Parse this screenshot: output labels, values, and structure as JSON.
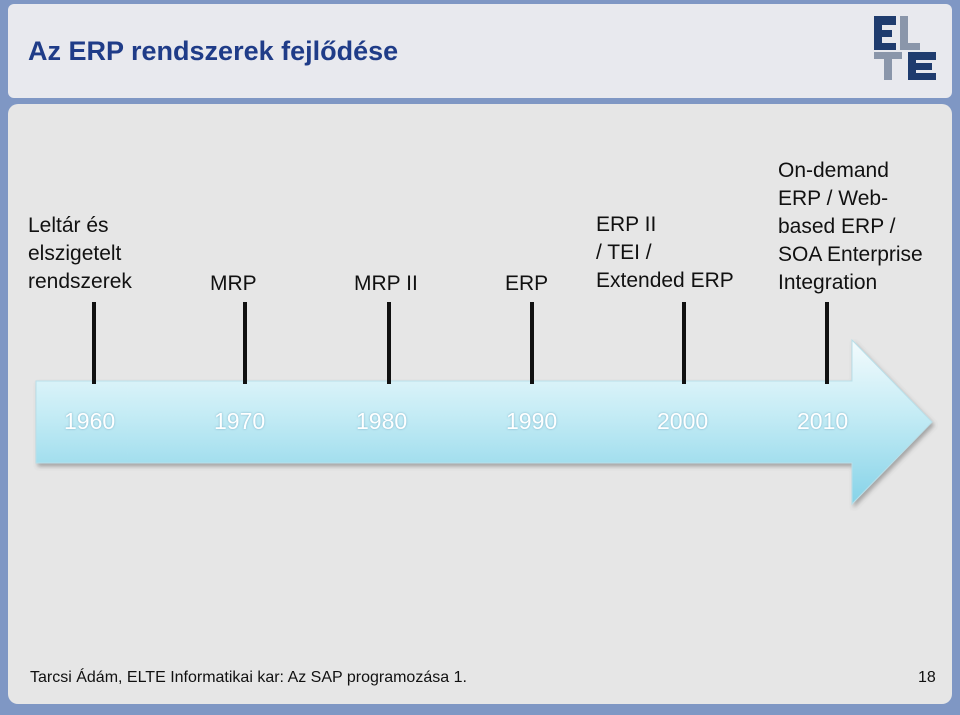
{
  "header": {
    "title": "Az ERP rendszerek fejlődése",
    "logo_text": "ELTE"
  },
  "milestones": [
    {
      "label": "Leltár és\nelszigetelt\nrendszerek",
      "year": "1960"
    },
    {
      "label": "MRP",
      "year": "1970"
    },
    {
      "label": "MRP II",
      "year": "1980"
    },
    {
      "label": "ERP",
      "year": "1990"
    },
    {
      "label": "ERP II\n/ TEI /\nExtended ERP",
      "year": "2000"
    },
    {
      "label": "On-demand\nERP / Web-\nbased ERP /\nSOA Enterprise\nIntegration",
      "year": "2010"
    }
  ],
  "colors": {
    "arrow_top": "#eaf7fb",
    "arrow_bottom": "#7fd0e6",
    "title": "#1f3c88",
    "logo": "#1f3c6e"
  },
  "footer": {
    "text": "Tarcsi Ádám, ELTE Informatikai kar: Az SAP programozása 1.",
    "page": "18"
  }
}
